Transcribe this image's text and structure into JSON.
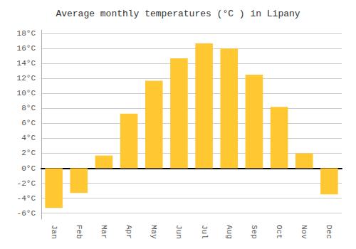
{
  "chart_data": {
    "type": "bar",
    "title": "Average monthly temperatures (°C ) in Lipany",
    "categories": [
      "Jan",
      "Feb",
      "Mar",
      "Apr",
      "May",
      "Jun",
      "Jul",
      "Aug",
      "Sep",
      "Oct",
      "Nov",
      "Dec"
    ],
    "values": [
      -5.3,
      -3.3,
      1.7,
      7.3,
      11.7,
      14.7,
      16.7,
      16.0,
      12.5,
      8.2,
      2.0,
      -3.5
    ],
    "color": "#FFC832",
    "ylim": [
      -6.8,
      18.5
    ],
    "yticks": [
      {
        "value": -6,
        "label": "-6°C"
      },
      {
        "value": -4,
        "label": "-4°C"
      },
      {
        "value": -2,
        "label": "-2°C"
      },
      {
        "value": 0,
        "label": "0°C"
      },
      {
        "value": 2,
        "label": "2°C"
      },
      {
        "value": 4,
        "label": "4°C"
      },
      {
        "value": 6,
        "label": "6°C"
      },
      {
        "value": 8,
        "label": "8°C"
      },
      {
        "value": 10,
        "label": "10°C"
      },
      {
        "value": 12,
        "label": "12°C"
      },
      {
        "value": 14,
        "label": "14°C"
      },
      {
        "value": 16,
        "label": "16°C"
      },
      {
        "value": 18,
        "label": "18°C"
      }
    ],
    "grid": true
  }
}
